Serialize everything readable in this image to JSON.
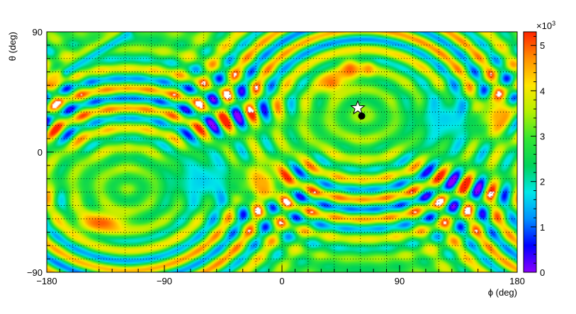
{
  "chart_data": {
    "type": "heatmap",
    "title": "",
    "xlabel": "ϕ (deg)",
    "ylabel": "θ (deg)",
    "xlim": [
      -180,
      180
    ],
    "ylim": [
      -90,
      90
    ],
    "x_ticks": [
      -180,
      -90,
      0,
      90,
      180
    ],
    "y_ticks": [
      -90,
      0,
      90
    ],
    "x_tick_labels": [
      "−180",
      "−90",
      "0",
      "90",
      "180"
    ],
    "y_tick_labels": [
      "−90",
      "0",
      "90"
    ],
    "grid": true,
    "colorbar": {
      "min": 0,
      "max": 5.3,
      "multiplier_label": "×10",
      "multiplier_exponent": "3",
      "ticks": [
        0,
        1,
        2,
        3,
        4,
        5
      ],
      "tick_labels": [
        "0",
        "1",
        "2",
        "3",
        "4",
        "5"
      ],
      "colors": [
        "#8a00ff",
        "#0000ff",
        "#0090ff",
        "#00e8e8",
        "#00d25a",
        "#33e633",
        "#b4f000",
        "#ffe600",
        "#ff9000",
        "#ff2400"
      ]
    },
    "background_level": 2.9,
    "features": [
      {
        "kind": "blob",
        "phi": -60,
        "theta": -22,
        "value": 1.6,
        "sigma_phi": 18,
        "sigma_theta": 14
      },
      {
        "kind": "blob",
        "phi": -34,
        "theta": -26,
        "value": 1.9,
        "sigma_phi": 8,
        "sigma_theta": 6
      },
      {
        "kind": "blob",
        "phi": 125,
        "theta": 25,
        "value": 1.6,
        "sigma_phi": 16,
        "sigma_theta": 14
      },
      {
        "kind": "blob",
        "phi": 150,
        "theta": 24,
        "value": 1.9,
        "sigma_phi": 8,
        "sigma_theta": 6
      },
      {
        "kind": "blob",
        "phi": -15,
        "theta": -23,
        "value": 4.5,
        "sigma_phi": 12,
        "sigma_theta": 10
      },
      {
        "kind": "blob",
        "phi": 165,
        "theta": 27,
        "value": 4.5,
        "sigma_phi": 10,
        "sigma_theta": 10
      },
      {
        "kind": "blob",
        "phi": -138,
        "theta": -53,
        "value": 5.0,
        "sigma_phi": 14,
        "sigma_theta": 6
      },
      {
        "kind": "blob",
        "phi": 38,
        "theta": 52,
        "value": 4.9,
        "sigma_phi": 8,
        "sigma_theta": 6
      },
      {
        "kind": "blob",
        "phi": 52,
        "theta": 62,
        "value": 5.0,
        "sigma_phi": 6,
        "sigma_theta": 6
      },
      {
        "kind": "blob",
        "phi": 66,
        "theta": 62,
        "value": 4.7,
        "sigma_phi": 4,
        "sigma_theta": 4
      },
      {
        "kind": "band",
        "phi0": -125,
        "theta0": 88,
        "phi1": -175,
        "theta1": 55,
        "value": 4.3,
        "width": 4
      },
      {
        "kind": "band",
        "phi0": -118,
        "theta0": 88,
        "phi1": -165,
        "theta1": 60,
        "value": 1.5,
        "width": 3
      }
    ],
    "ring_systems": [
      {
        "center_phi": 62,
        "center_theta": 28,
        "phase": 0.0
      },
      {
        "center_phi": -118,
        "center_theta": -28,
        "phase": 1.2
      }
    ],
    "markers": [
      {
        "kind": "star",
        "phi": 58,
        "theta": 33,
        "label": "star-marker"
      },
      {
        "kind": "dot",
        "phi": 61,
        "theta": 27,
        "label": "dot-marker"
      }
    ]
  }
}
